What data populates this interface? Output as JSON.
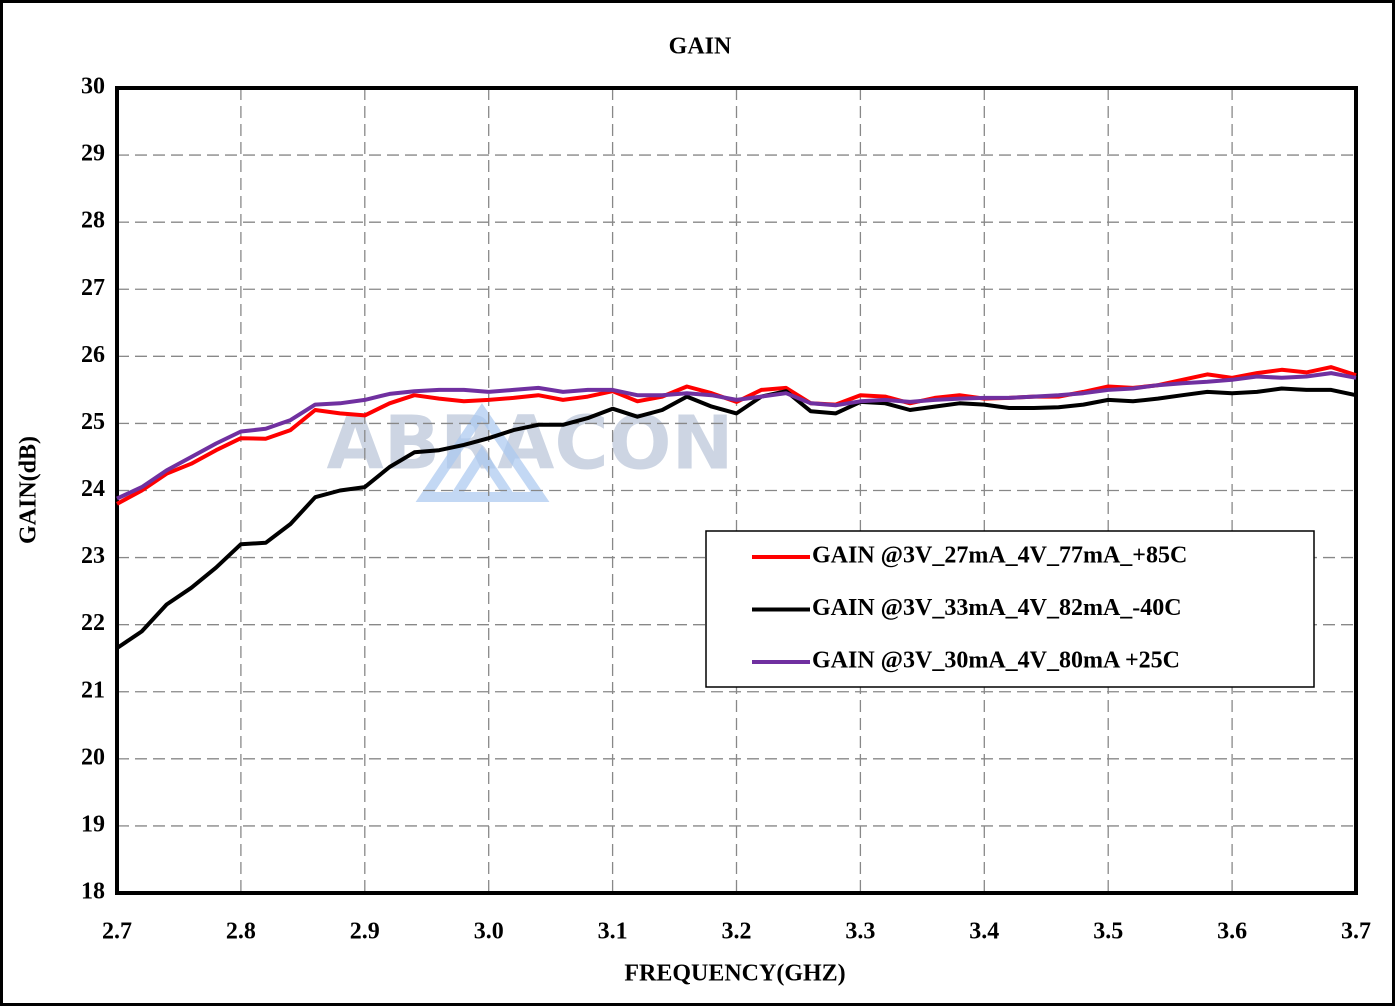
{
  "chart_data": {
    "type": "line",
    "title": "GAIN",
    "xlabel": "FREQUENCY(GHZ)",
    "ylabel": "GAIN(dB)",
    "watermark": "ABRACON",
    "x": [
      2.7,
      2.72,
      2.74,
      2.76,
      2.78,
      2.8,
      2.82,
      2.84,
      2.86,
      2.88,
      2.9,
      2.92,
      2.94,
      2.96,
      2.98,
      3.0,
      3.02,
      3.04,
      3.06,
      3.08,
      3.1,
      3.12,
      3.14,
      3.16,
      3.18,
      3.2,
      3.22,
      3.24,
      3.26,
      3.28,
      3.3,
      3.32,
      3.34,
      3.36,
      3.38,
      3.4,
      3.42,
      3.44,
      3.46,
      3.48,
      3.5,
      3.52,
      3.54,
      3.56,
      3.58,
      3.6,
      3.62,
      3.64,
      3.66,
      3.68,
      3.7
    ],
    "series": [
      {
        "name": "GAIN @3V_27mA_4V_77mA_+85C",
        "color": "#ff0000",
        "values": [
          23.8,
          24.0,
          24.25,
          24.4,
          24.6,
          24.78,
          24.77,
          24.9,
          25.2,
          25.15,
          25.12,
          25.3,
          25.42,
          25.37,
          25.33,
          25.35,
          25.38,
          25.42,
          25.35,
          25.4,
          25.48,
          25.33,
          25.4,
          25.55,
          25.45,
          25.32,
          25.5,
          25.53,
          25.3,
          25.28,
          25.42,
          25.4,
          25.3,
          25.38,
          25.42,
          25.37,
          25.38,
          25.4,
          25.4,
          25.47,
          25.55,
          25.53,
          25.57,
          25.65,
          25.73,
          25.68,
          25.75,
          25.8,
          25.76,
          25.84,
          25.72
        ]
      },
      {
        "name": "GAIN @3V_33mA_4V_82mA_-40C",
        "color": "#000000",
        "values": [
          21.65,
          21.9,
          22.3,
          22.55,
          22.85,
          23.2,
          23.22,
          23.5,
          23.9,
          24.0,
          24.05,
          24.35,
          24.57,
          24.6,
          24.68,
          24.78,
          24.9,
          24.98,
          24.98,
          25.08,
          25.22,
          25.1,
          25.2,
          25.4,
          25.25,
          25.15,
          25.4,
          25.48,
          25.18,
          25.15,
          25.32,
          25.3,
          25.2,
          25.25,
          25.3,
          25.28,
          25.23,
          25.23,
          25.24,
          25.28,
          25.35,
          25.33,
          25.37,
          25.42,
          25.47,
          25.45,
          25.47,
          25.52,
          25.5,
          25.5,
          25.42
        ]
      },
      {
        "name": "GAIN @3V_30mA_4V_80mA +25C",
        "color": "#7030a0",
        "values": [
          23.88,
          24.05,
          24.3,
          24.5,
          24.7,
          24.88,
          24.92,
          25.05,
          25.28,
          25.3,
          25.35,
          25.44,
          25.48,
          25.5,
          25.5,
          25.47,
          25.5,
          25.53,
          25.47,
          25.5,
          25.5,
          25.42,
          25.42,
          25.45,
          25.42,
          25.35,
          25.4,
          25.45,
          25.3,
          25.27,
          25.33,
          25.35,
          25.32,
          25.35,
          25.37,
          25.38,
          25.38,
          25.4,
          25.42,
          25.45,
          25.5,
          25.52,
          25.57,
          25.6,
          25.62,
          25.65,
          25.7,
          25.68,
          25.7,
          25.75,
          25.68
        ]
      }
    ],
    "xlim": [
      2.7,
      3.7
    ],
    "xticks": [
      2.7,
      2.8,
      2.9,
      {
        "value": 3,
        "label": "3.0"
      },
      3.1,
      3.2,
      3.3,
      3.4,
      3.5,
      3.6,
      3.7
    ],
    "ylim": [
      18,
      30
    ],
    "yticks": [
      18,
      19,
      20,
      21,
      22,
      23,
      24,
      25,
      26,
      27,
      28,
      29,
      30
    ],
    "grid": true
  }
}
